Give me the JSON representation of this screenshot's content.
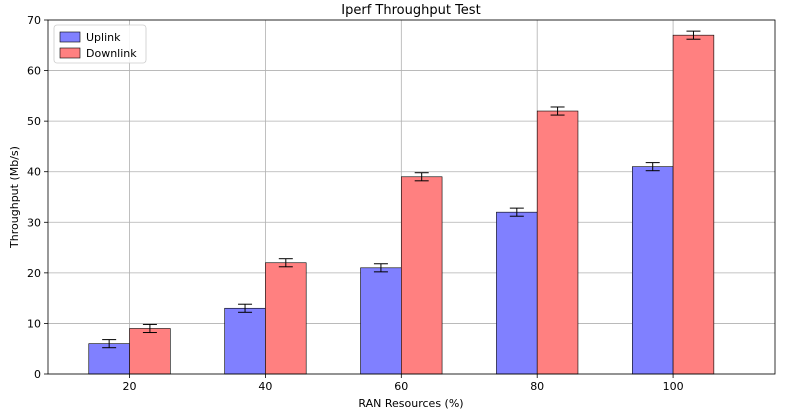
{
  "chart_data": {
    "type": "bar",
    "title": "Iperf Throughput Test",
    "xlabel": "RAN Resources (%)",
    "ylabel": "Throughput (Mb/s)",
    "categories": [
      "20",
      "40",
      "60",
      "80",
      "100"
    ],
    "x": [
      20,
      40,
      60,
      80,
      100
    ],
    "xlim": [
      8,
      115
    ],
    "ylim": [
      0,
      70
    ],
    "xticks": [
      "20",
      "40",
      "60",
      "80",
      "100"
    ],
    "yticks": [
      "0",
      "10",
      "20",
      "30",
      "40",
      "50",
      "60",
      "70"
    ],
    "grid": true,
    "legend_position": "top-left",
    "error_bars": true,
    "series": [
      {
        "name": "Uplink",
        "color": "#8080ff",
        "values": [
          6,
          13,
          21,
          32,
          41
        ],
        "errors": [
          0.8,
          0.8,
          0.8,
          0.8,
          0.8
        ]
      },
      {
        "name": "Downlink",
        "color": "#ff8080",
        "values": [
          9,
          22,
          39,
          52,
          67
        ],
        "errors": [
          0.8,
          0.8,
          0.8,
          0.8,
          0.8
        ]
      }
    ]
  }
}
